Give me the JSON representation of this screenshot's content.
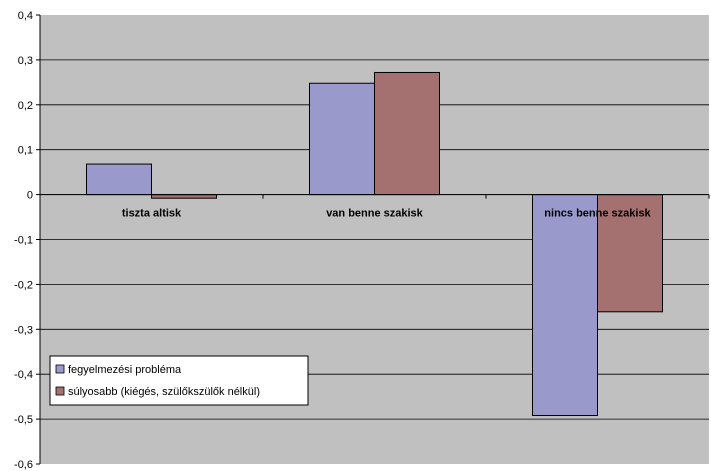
{
  "chart_data": {
    "type": "bar",
    "categories": [
      "tiszta altisk",
      "van benne szakisk",
      "nincs benne szakisk"
    ],
    "series": [
      {
        "name": "fegyelmezési probléma",
        "values": [
          0.068,
          0.248,
          -0.492
        ],
        "color": "#9999cc"
      },
      {
        "name": "súlyosabb (kiégés, szülőkszülők nélkül)",
        "values": [
          -0.008,
          0.272,
          -0.261
        ],
        "color": "#a57070"
      }
    ],
    "yticks": [
      "0,4",
      "0,3",
      "0,2",
      "0,1",
      "0",
      "-0,1",
      "-0,2",
      "-0,3",
      "-0,4",
      "-0,5",
      "-0,6"
    ],
    "ylim": [
      -0.6,
      0.4
    ],
    "title": "",
    "xlabel": "",
    "ylabel": "",
    "grid": true,
    "plot_background": "#c0c0c0",
    "legend_position": "bottom-left"
  }
}
